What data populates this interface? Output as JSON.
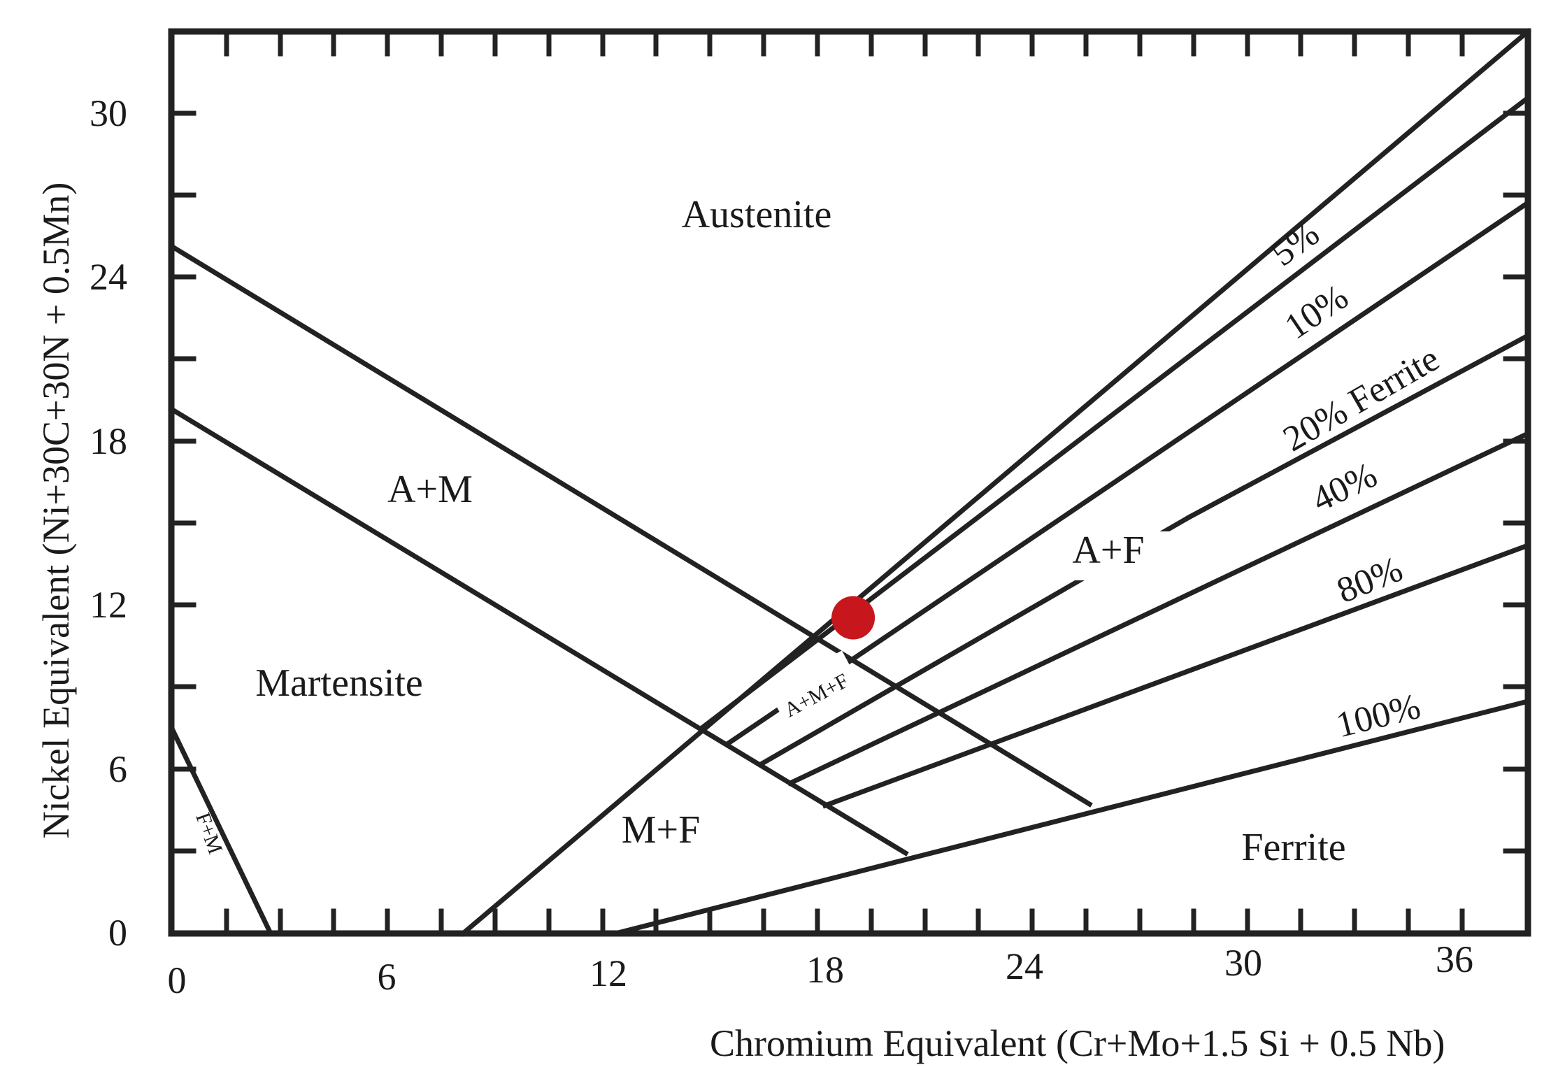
{
  "diagram": {
    "type": "schaeffler-diagram",
    "x_axis": {
      "label": "Chromium Equivalent (Cr+Mo+1.5 Si + 0.5 Nb)",
      "ticks": [
        "0",
        "6",
        "12",
        "18",
        "24",
        "30",
        "36"
      ],
      "range": [
        0,
        38
      ]
    },
    "y_axis": {
      "label": "Nickel Equivalent (Ni+30C+30N + 0.5Mn)",
      "ticks": [
        "0",
        "6",
        "12",
        "18",
        "24",
        "30"
      ],
      "range": [
        0,
        32
      ]
    },
    "regions": {
      "austenite": "Austenite",
      "a_m": "A+M",
      "martensite": "Martensite",
      "a_f": "A+F",
      "m_f": "M+F",
      "a_m_f": "A+M+F",
      "ferrite": "Ferrite",
      "f_m": "F+M"
    },
    "ferrite_lines": {
      "p5": "5%",
      "p10": "10%",
      "p20": "20% Ferrite",
      "p40": "40%",
      "p80": "80%",
      "p100": "100%"
    },
    "marker": {
      "x": 19.1,
      "y": 11.2,
      "color": "#c8161d"
    }
  }
}
